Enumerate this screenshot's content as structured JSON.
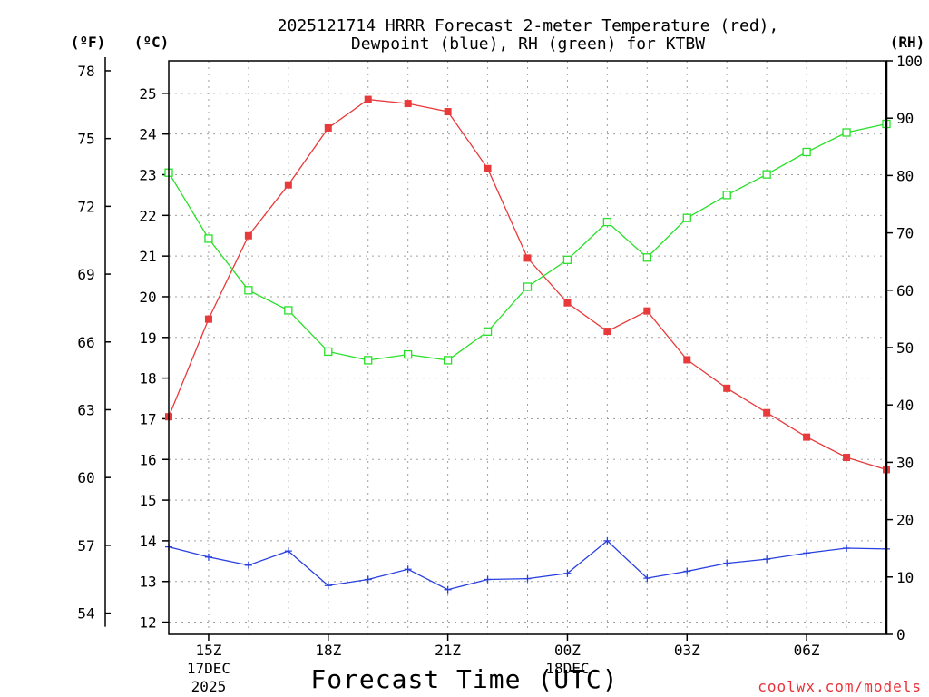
{
  "chart_data": {
    "type": "line",
    "title": "2025121714 HRRR Forecast 2-meter Temperature (red),",
    "subtitle": "Dewpoint (blue), RH (green) for KTBW",
    "xlabel": "Forecast Time (UTC)",
    "credit": "coolwx.com/models",
    "units": {
      "fahrenheit": "(ºF)",
      "celsius": "(ºC)",
      "rh": "(RH)"
    },
    "x_index": [
      0,
      1,
      2,
      3,
      4,
      5,
      6,
      7,
      8,
      9,
      10,
      11,
      12,
      13,
      14,
      15,
      16,
      17,
      18
    ],
    "x_ticks": [
      {
        "index": 1,
        "label": "15Z",
        "sub": [
          "17DEC",
          "2025"
        ]
      },
      {
        "index": 4,
        "label": "18Z",
        "sub": []
      },
      {
        "index": 7,
        "label": "21Z",
        "sub": []
      },
      {
        "index": 10,
        "label": "00Z",
        "sub": [
          "18DEC"
        ]
      },
      {
        "index": 13,
        "label": "03Z",
        "sub": []
      },
      {
        "index": 16,
        "label": "06Z",
        "sub": []
      }
    ],
    "grid_x_index": [
      1,
      2,
      3,
      4,
      5,
      6,
      7,
      8,
      9,
      10,
      11,
      12,
      13,
      14,
      15,
      16,
      17
    ],
    "y_celsius": {
      "range": [
        11.7,
        25.8
      ],
      "ticks": [
        12,
        13,
        14,
        15,
        16,
        17,
        18,
        19,
        20,
        21,
        22,
        23,
        24,
        25
      ]
    },
    "y_fahrenheit": {
      "ticks": [
        54,
        57,
        60,
        63,
        66,
        69,
        72,
        75,
        78
      ]
    },
    "y_rh": {
      "range": [
        0,
        100
      ],
      "ticks": [
        0,
        10,
        20,
        30,
        40,
        50,
        60,
        70,
        80,
        90,
        100
      ]
    },
    "series": [
      {
        "name": "Temperature",
        "axis": "celsius",
        "color": "#e83a3a",
        "marker": "filled-square",
        "values": [
          17.05,
          19.45,
          21.5,
          22.75,
          24.15,
          24.85,
          24.75,
          24.55,
          23.15,
          20.95,
          19.85,
          19.15,
          19.65,
          18.45,
          17.75,
          17.15,
          16.55,
          16.05,
          15.75
        ]
      },
      {
        "name": "Dewpoint",
        "axis": "celsius",
        "color": "#2840e0",
        "marker": "plus",
        "values": [
          13.85,
          13.6,
          13.4,
          13.75,
          12.9,
          13.05,
          13.3,
          12.8,
          13.05,
          13.07,
          13.2,
          14.0,
          13.08,
          13.25,
          13.45,
          13.55,
          13.7,
          13.82,
          13.8
        ]
      },
      {
        "name": "RH",
        "axis": "rh",
        "color": "#28e028",
        "marker": "open-square",
        "values": [
          80.5,
          69,
          60,
          56.5,
          49.3,
          47.8,
          48.8,
          47.8,
          52.8,
          60.6,
          65.3,
          71.9,
          65.7,
          72.6,
          76.6,
          80.2,
          84.1,
          87.5,
          89
        ]
      }
    ]
  },
  "colors": {
    "frame": "#000000",
    "grid": "#a0a0a0",
    "credit": "#e8333a"
  }
}
